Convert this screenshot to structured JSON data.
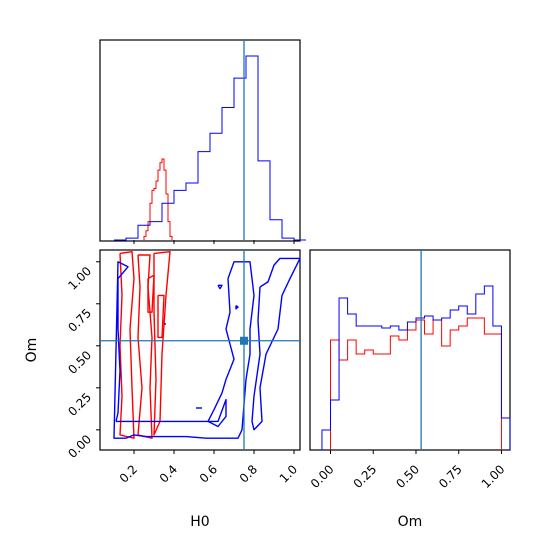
{
  "chart_data": {
    "type": "corner",
    "parameters": [
      "H0",
      "Om"
    ],
    "truth": {
      "H0": 0.75,
      "Om": 0.53
    },
    "colors": {
      "series_a": "#ff0000",
      "series_b": "#0000ff",
      "truth": "#1f77b4"
    },
    "hist_H0": {
      "xlim": [
        0.03,
        1.03
      ],
      "series": [
        {
          "color": "#ff0000",
          "x": [
            0.25,
            0.26,
            0.27,
            0.28,
            0.29,
            0.3,
            0.31,
            0.32,
            0.33,
            0.34,
            0.35,
            0.36,
            0.37,
            0.38
          ],
          "y": [
            0.02,
            0.05,
            0.1,
            0.2,
            0.27,
            0.28,
            0.32,
            0.38,
            0.42,
            0.44,
            0.38,
            0.25,
            0.1,
            0.02
          ]
        },
        {
          "color": "#0000ff",
          "x": [
            0.1,
            0.16,
            0.22,
            0.28,
            0.34,
            0.4,
            0.46,
            0.52,
            0.58,
            0.64,
            0.7,
            0.76,
            0.82,
            0.88,
            0.94,
            1.0
          ],
          "y": [
            0.0,
            0.01,
            0.08,
            0.1,
            0.2,
            0.27,
            0.31,
            0.48,
            0.58,
            0.72,
            0.88,
            1.0,
            0.43,
            0.11,
            0.01,
            0.0
          ]
        }
      ]
    },
    "hist_Om": {
      "xlim": [
        -0.12,
        1.05
      ],
      "series": [
        {
          "color": "#ff0000",
          "x": [
            0.0,
            0.05,
            0.1,
            0.15,
            0.2,
            0.25,
            0.3,
            0.35,
            0.4,
            0.45,
            0.5,
            0.55,
            0.6,
            0.65,
            0.7,
            0.75,
            0.8,
            0.85,
            0.9,
            0.95
          ],
          "y": [
            0.55,
            0.45,
            0.55,
            0.48,
            0.5,
            0.48,
            0.48,
            0.57,
            0.55,
            0.6,
            0.65,
            0.58,
            0.65,
            0.52,
            0.6,
            0.62,
            0.66,
            0.66,
            0.58,
            0.58
          ]
        },
        {
          "color": "#0000ff",
          "x": [
            -0.05,
            0.0,
            0.05,
            0.1,
            0.15,
            0.2,
            0.25,
            0.3,
            0.35,
            0.4,
            0.45,
            0.5,
            0.55,
            0.6,
            0.65,
            0.7,
            0.75,
            0.8,
            0.85,
            0.9,
            0.95,
            1.0
          ],
          "y": [
            0.1,
            0.25,
            0.76,
            0.68,
            0.62,
            0.62,
            0.62,
            0.61,
            0.62,
            0.6,
            0.64,
            0.66,
            0.67,
            0.65,
            0.66,
            0.7,
            0.72,
            0.68,
            0.78,
            0.82,
            0.62,
            0.16
          ]
        }
      ]
    },
    "scatter": {
      "xlim": [
        0.03,
        1.03
      ],
      "ylim": [
        -0.12,
        1.07
      ],
      "contours": [
        {
          "color": "#ff0000",
          "paths": [
            [
              [
                0.13,
                1.05
              ],
              [
                0.19,
                1.06
              ],
              [
                0.2,
                0.9
              ],
              [
                0.18,
                0.6
              ],
              [
                0.19,
                0.25
              ],
              [
                0.2,
                -0.05
              ],
              [
                0.13,
                -0.03
              ],
              [
                0.14,
                0.2
              ],
              [
                0.13,
                0.5
              ],
              [
                0.14,
                0.8
              ],
              [
                0.13,
                1.05
              ]
            ],
            [
              [
                0.22,
                1.04
              ],
              [
                0.28,
                1.04
              ],
              [
                0.27,
                0.85
              ],
              [
                0.29,
                0.55
              ],
              [
                0.28,
                0.25
              ],
              [
                0.29,
                -0.05
              ],
              [
                0.22,
                -0.03
              ],
              [
                0.24,
                0.25
              ],
              [
                0.22,
                0.55
              ],
              [
                0.23,
                0.85
              ],
              [
                0.22,
                1.04
              ]
            ],
            [
              [
                0.3,
                1.05
              ],
              [
                0.38,
                1.06
              ],
              [
                0.36,
                0.8
              ],
              [
                0.34,
                0.45
              ],
              [
                0.33,
                0.05
              ],
              [
                0.3,
                -0.03
              ],
              [
                0.31,
                0.3
              ],
              [
                0.3,
                0.7
              ],
              [
                0.3,
                1.05
              ]
            ],
            [
              [
                0.27,
                0.9
              ],
              [
                0.3,
                0.92
              ],
              [
                0.29,
                0.7
              ],
              [
                0.27,
                0.7
              ],
              [
                0.27,
                0.9
              ]
            ],
            [
              [
                0.32,
                0.8
              ],
              [
                0.35,
                0.8
              ],
              [
                0.34,
                0.55
              ],
              [
                0.32,
                0.55
              ],
              [
                0.32,
                0.8
              ]
            ]
          ]
        },
        {
          "color": "#0000ff",
          "paths": [
            [
              [
                0.11,
                0.05
              ],
              [
                0.12,
                0.1
              ],
              [
                0.13,
                0.35
              ],
              [
                0.12,
                0.6
              ],
              [
                0.12,
                0.9
              ],
              [
                0.17,
                0.97
              ],
              [
                0.12,
                1.0
              ],
              [
                0.1,
                -0.05
              ],
              [
                0.16,
                -0.05
              ],
              [
                0.2,
                -0.03
              ],
              [
                0.26,
                -0.04
              ],
              [
                0.46,
                -0.04
              ],
              [
                0.56,
                -0.05
              ],
              [
                0.72,
                -0.05
              ],
              [
                0.74,
                0.0
              ],
              [
                0.75,
                0.15
              ],
              [
                0.76,
                0.3
              ],
              [
                0.78,
                0.45
              ],
              [
                0.78,
                0.6
              ],
              [
                0.8,
                0.8
              ],
              [
                0.78,
                1.0
              ],
              [
                0.7,
                1.0
              ],
              [
                0.67,
                0.9
              ],
              [
                0.68,
                0.7
              ],
              [
                0.66,
                0.6
              ],
              [
                0.7,
                0.42
              ],
              [
                0.66,
                0.3
              ],
              [
                0.64,
                0.22
              ],
              [
                0.6,
                0.12
              ],
              [
                0.57,
                0.05
              ],
              [
                0.62,
                0.02
              ],
              [
                0.66,
                0.08
              ],
              [
                0.66,
                0.18
              ],
              [
                0.62,
                0.05
              ],
              [
                0.12,
                0.05
              ],
              [
                0.11,
                0.05
              ]
            ],
            [
              [
                0.83,
                0.85
              ],
              [
                0.87,
                0.88
              ],
              [
                0.9,
                0.98
              ],
              [
                0.93,
                1.02
              ],
              [
                1.03,
                1.02
              ],
              [
                0.98,
                0.9
              ],
              [
                0.94,
                0.8
              ],
              [
                0.92,
                0.6
              ],
              [
                0.86,
                0.45
              ],
              [
                0.83,
                0.25
              ],
              [
                0.84,
                0.05
              ],
              [
                0.8,
                0.0
              ],
              [
                0.79,
                0.05
              ],
              [
                0.8,
                0.2
              ],
              [
                0.83,
                0.45
              ],
              [
                0.82,
                0.65
              ],
              [
                0.83,
                0.85
              ]
            ],
            [
              [
                0.62,
                0.86
              ],
              [
                0.64,
                0.86
              ],
              [
                0.63,
                0.84
              ],
              [
                0.62,
                0.86
              ]
            ],
            [
              [
                0.71,
                0.74
              ],
              [
                0.72,
                0.73
              ],
              [
                0.71,
                0.72
              ],
              [
                0.71,
                0.74
              ]
            ],
            [
              [
                0.51,
                0.13
              ],
              [
                0.54,
                0.13
              ]
            ],
            [
              [
                0.35,
                0.63
              ],
              [
                0.36,
                0.63
              ]
            ]
          ]
        }
      ]
    },
    "ticks_H0": [
      "0.2",
      "0.4",
      "0.6",
      "0.8",
      "1.0"
    ],
    "ticks_Om_left": [
      "0.00",
      "0.25",
      "0.50",
      "0.75",
      "1.00"
    ],
    "ticks_Om_bottom": [
      "0.00",
      "0.25",
      "0.50",
      "0.75",
      "1.00"
    ],
    "xlabel_left": "H0",
    "xlabel_right": "Om",
    "ylabel": "Om"
  }
}
